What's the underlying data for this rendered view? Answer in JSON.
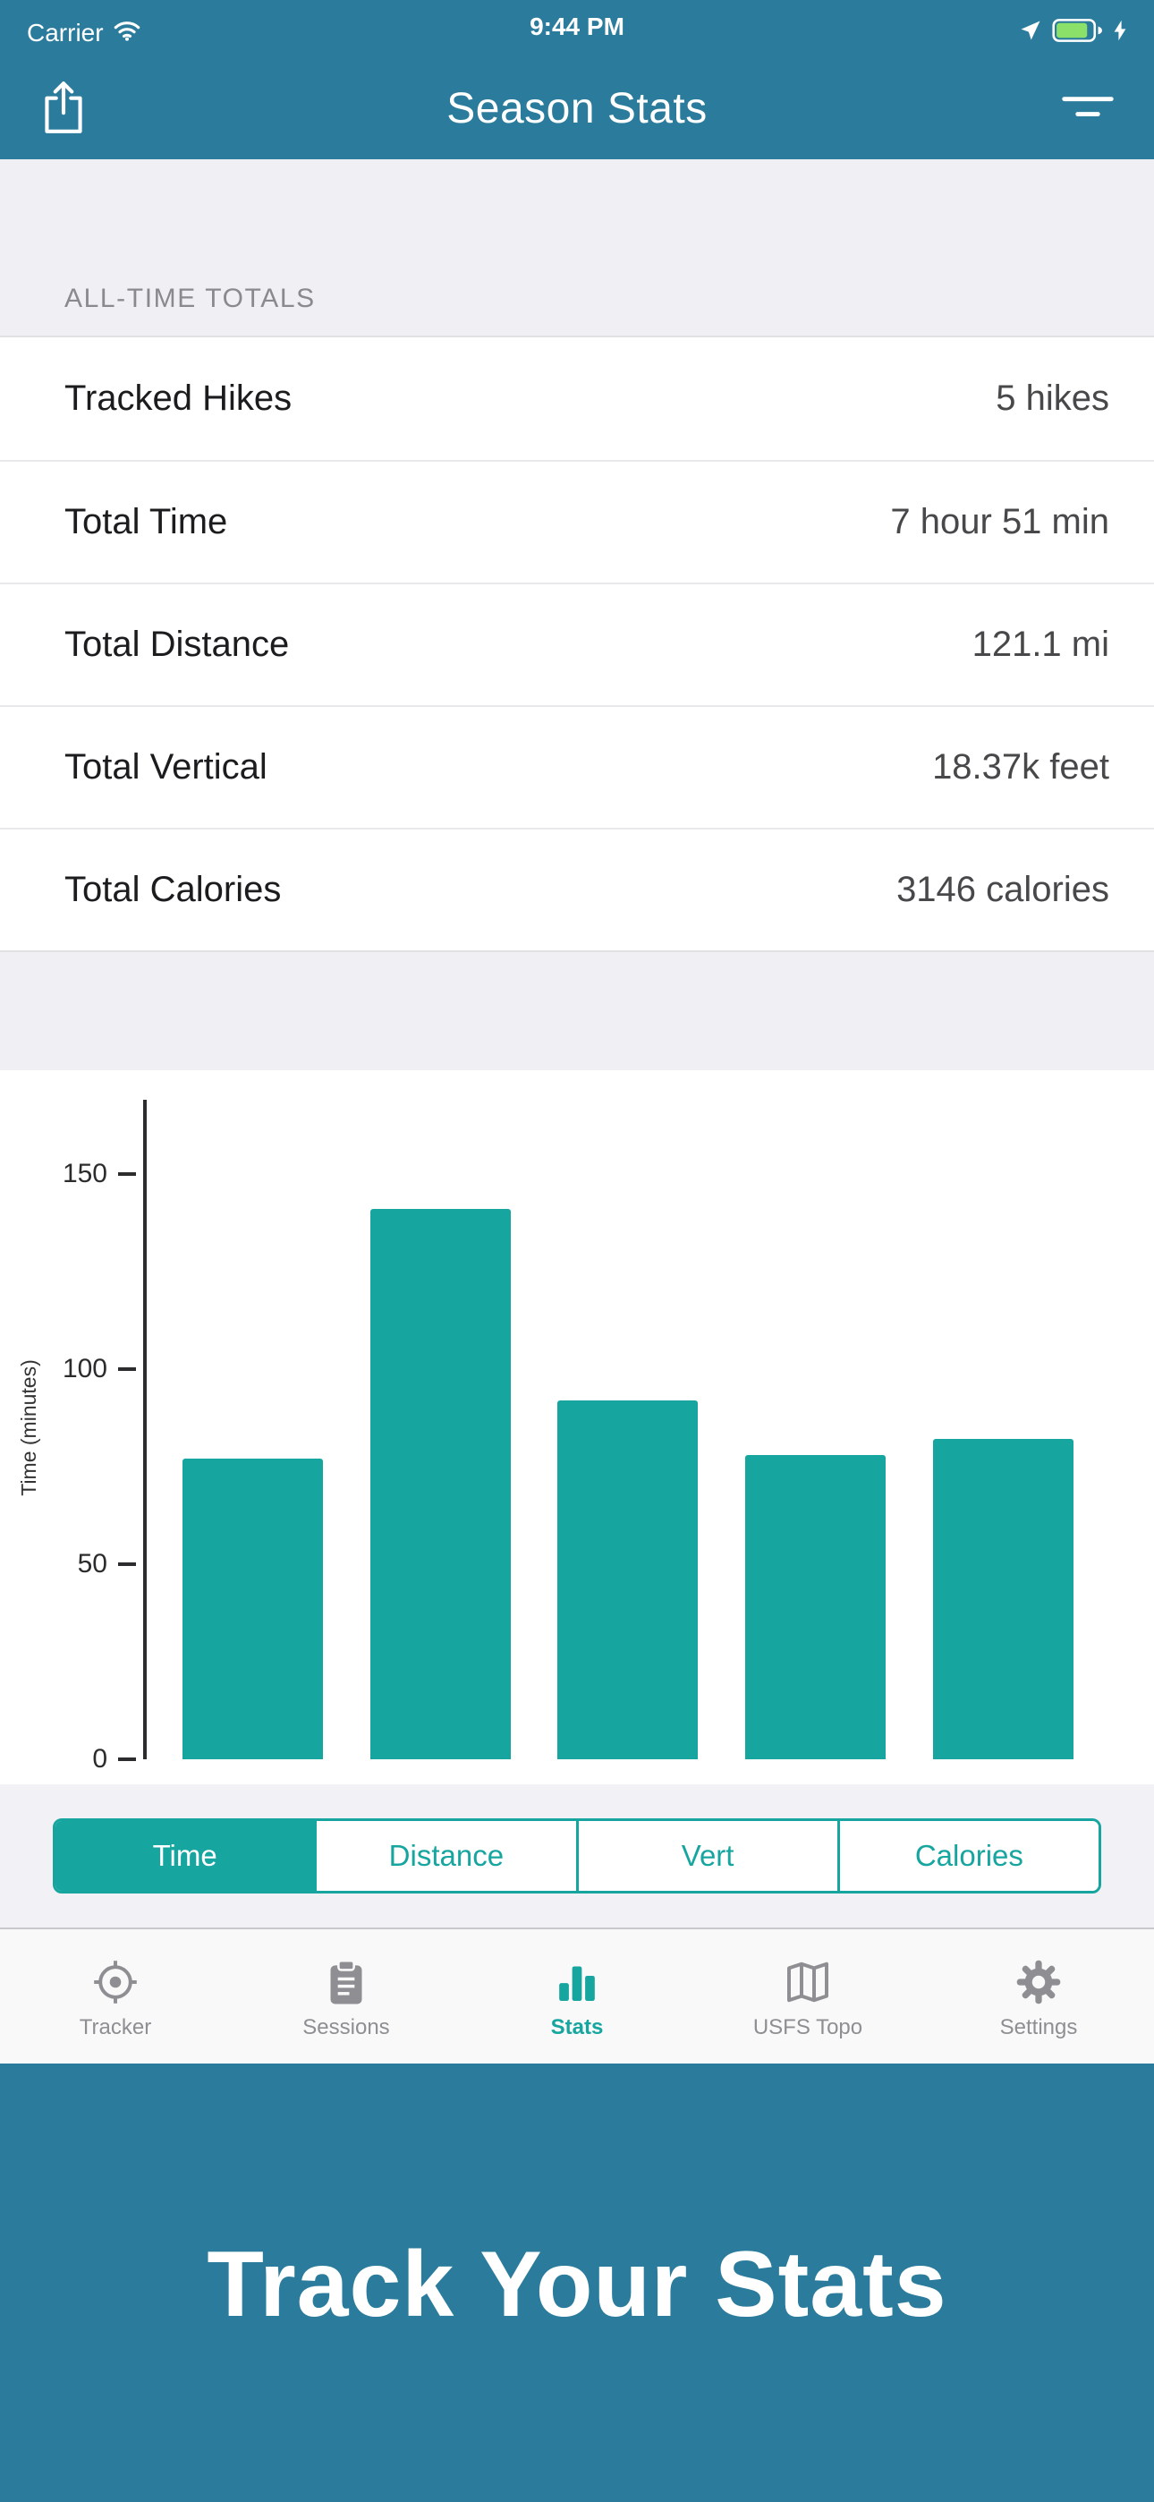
{
  "colors": {
    "chrome": "#2B7C9C",
    "accent": "#17A5A0",
    "battery_fill": "#8BE06A",
    "background": "#EFEFF4"
  },
  "status_bar": {
    "carrier": "Carrier",
    "time": "9:44 PM",
    "icons": [
      "wifi-icon",
      "location-arrow-icon",
      "battery-icon",
      "charging-bolt-icon"
    ]
  },
  "nav": {
    "title": "Season Stats",
    "left_icon": "share-icon",
    "right_icon": "filter-icon"
  },
  "totals": {
    "section_header": "ALL-TIME TOTALS",
    "rows": [
      {
        "label": "Tracked Hikes",
        "value": "5 hikes"
      },
      {
        "label": "Total Time",
        "value": "7 hour 51 min"
      },
      {
        "label": "Total Distance",
        "value": "121.1 mi"
      },
      {
        "label": "Total Vertical",
        "value": "18.37k feet"
      },
      {
        "label": "Total Calories",
        "value": "3146 calories"
      }
    ]
  },
  "chart_data": {
    "type": "bar",
    "values": [
      77,
      141,
      92,
      78,
      82
    ],
    "x_tick_labels": [],
    "title": "",
    "xlabel": "",
    "ylabel": "Time (minutes)",
    "yticks": [
      0,
      50,
      100,
      150
    ],
    "ylim": [
      0,
      169
    ],
    "bar_color": "#17A5A0",
    "grid": false,
    "legend": false
  },
  "segmented": {
    "options": [
      "Time",
      "Distance",
      "Vert",
      "Calories"
    ],
    "selected": "Time"
  },
  "tab_bar": {
    "items": [
      {
        "label": "Tracker",
        "icon": "tracker-target-icon",
        "active": false
      },
      {
        "label": "Sessions",
        "icon": "sessions-clipboard-icon",
        "active": false
      },
      {
        "label": "Stats",
        "icon": "stats-bar-chart-icon",
        "active": true
      },
      {
        "label": "USFS Topo",
        "icon": "usfs-topo-map-icon",
        "active": false
      },
      {
        "label": "Settings",
        "icon": "settings-gear-icon",
        "active": false
      }
    ]
  },
  "banner": {
    "title": "Track Your Stats"
  }
}
